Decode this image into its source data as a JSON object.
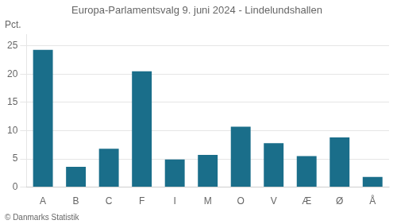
{
  "chart_data": {
    "type": "bar",
    "title": "Europa-Parlamentsvalg 9. juni 2024 - Lindelundshallen",
    "y_label": "Pct.",
    "footer": "© Danmarks Statistik",
    "categories": [
      "A",
      "B",
      "C",
      "F",
      "I",
      "M",
      "O",
      "V",
      "Æ",
      "Ø",
      "Å"
    ],
    "values": [
      24.3,
      3.6,
      6.8,
      20.5,
      4.9,
      5.7,
      10.7,
      7.8,
      5.5,
      8.8,
      1.8
    ],
    "color": "#1a6e8a",
    "ylim": [
      0,
      27
    ],
    "yticks": [
      0,
      5,
      10,
      15,
      20,
      25
    ],
    "grid": true
  }
}
